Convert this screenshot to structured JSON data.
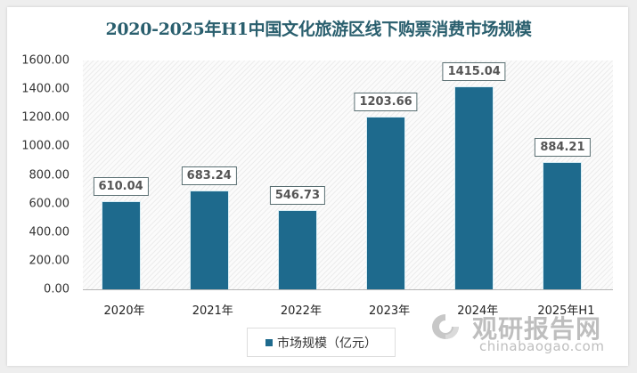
{
  "chart_data": {
    "type": "bar",
    "title": "2020-2025年H1中国文化旅游区线下购票消费市场规模",
    "categories": [
      "2020年",
      "2021年",
      "2022年",
      "2023年",
      "2024年",
      "2025年H1"
    ],
    "series": [
      {
        "name": "市场规模（亿元）",
        "values": [
          610.04,
          683.24,
          546.73,
          1203.66,
          1415.04,
          884.21
        ],
        "color": "#1e6a8d"
      }
    ],
    "value_labels": [
      "610.04",
      "683.24",
      "546.73",
      "1203.66",
      "1415.04",
      "884.21"
    ],
    "xlabel": "",
    "ylabel": "",
    "ylim": [
      0,
      1600
    ],
    "yticks": [
      "0.00",
      "200.00",
      "400.00",
      "600.00",
      "800.00",
      "1000.00",
      "1200.00",
      "1400.00",
      "1600.00"
    ],
    "grid": false,
    "legend_position": "bottom"
  },
  "legend": {
    "label": "市场规模（亿元）"
  },
  "watermark": {
    "cn": "观研报告网",
    "en": "chinabaogao.com"
  }
}
